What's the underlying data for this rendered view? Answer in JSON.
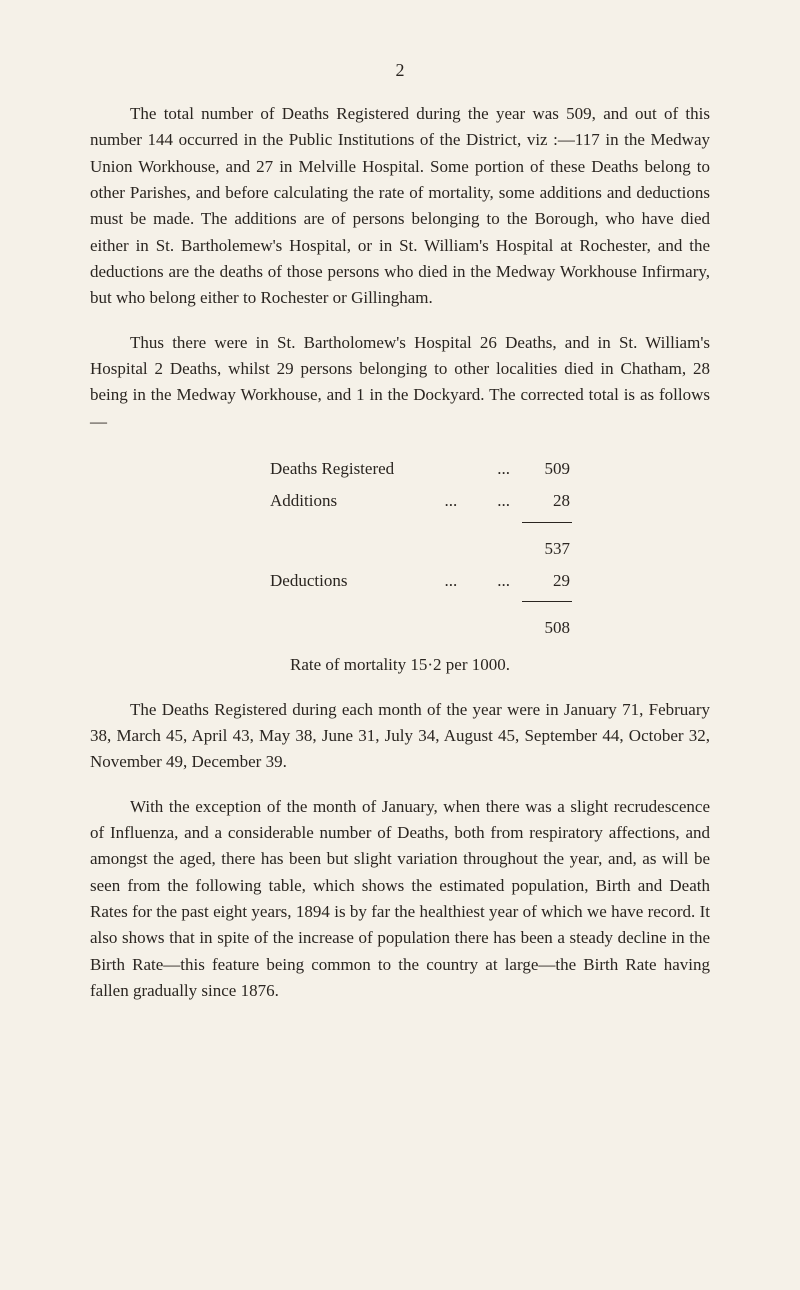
{
  "page_number": "2",
  "para1": "The total number of Deaths Registered during the year was 509, and out of this number 144 occurred in the Public Institutions of the District, viz :—117 in the Medway Union Workhouse, and 27 in Melville Hospital. Some portion of these Deaths belong to other Parishes, and before calculating the rate of mortality, some additions and deductions must be made. The additions are of persons belonging to the Borough, who have died either in St. Bartholemew's Hospital, or in St. William's Hospital at Rochester, and the deductions are the deaths of those persons who died in the Medway Workhouse Infirmary, but who belong either to Rochester or Gillingham.",
  "para2": "Thus there were in St. Bartholomew's Hospital 26 Deaths, and in St. William's Hospital 2 Deaths, whilst 29 persons belonging to other localities died in Chatham, 28 being in the Medway Workhouse, and 1 in the Dockyard. The corrected total is as follows—",
  "calc": {
    "row1_label": "Deaths Registered",
    "row1_dots": "...",
    "row1_value": "509",
    "row2_label": "Additions",
    "row2_dots1": "...",
    "row2_dots2": "...",
    "row2_value": "28",
    "row3_value": "537",
    "row4_label": "Deductions",
    "row4_dots1": "...",
    "row4_dots2": "...",
    "row4_value": "29",
    "row5_value": "508"
  },
  "rate_line": "Rate of mortality 15·2 per 1000.",
  "para3": "The Deaths Registered during each month of the year were in January 71, February 38, March 45, April 43, May 38, June 31, July 34, August 45, September 44, October 32, November 49, December 39.",
  "para4": "With the exception of the month of January, when there was a slight recrudescence of Influenza, and a considerable number of Deaths, both from respiratory affections, and amongst the aged, there has been but slight variation throughout the year, and, as will be seen from the following table, which shows the estimated population, Birth and Death Rates for the past eight years, 1894 is by far the healthiest year of which we have record. It also shows that in spite of the increase of population there has been a steady decline in the Birth Rate—this feature being common to the country at large—the Birth Rate having fallen gradually since 1876."
}
